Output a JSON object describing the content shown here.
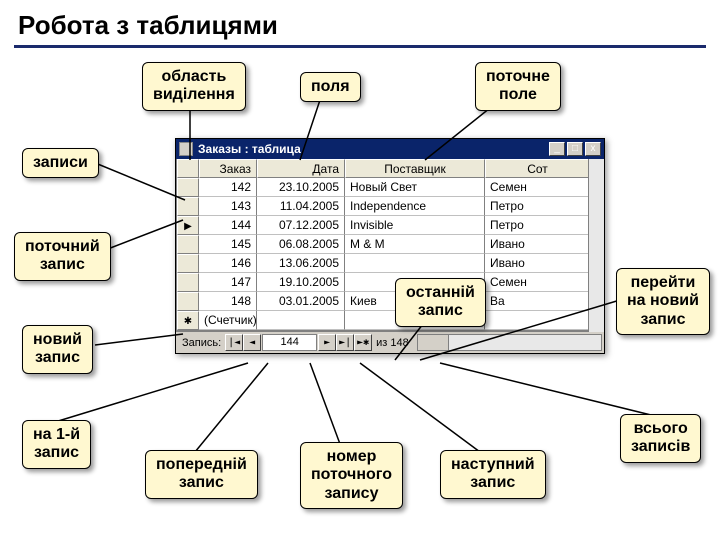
{
  "page": {
    "title": "Робота з таблицями"
  },
  "callouts": {
    "selection_area": "область\nвиділення",
    "fields": "поля",
    "current_field": "поточне\nполе",
    "records": "записи",
    "current_record": "поточний\nзапис",
    "new_record": "новий\nзапис",
    "last_record": "останній\nзапис",
    "goto_new": "перейти\nна новий\nзапис",
    "goto_first": "на 1-й\nзапис",
    "prev_record": "попередній\nзапис",
    "current_num": "номер\nпоточного\nзапису",
    "next_record": "наступний\nзапис",
    "total_records": "всього\nзаписів"
  },
  "window": {
    "title": "Заказы : таблица",
    "min": "_",
    "max": "□",
    "close": "x"
  },
  "grid": {
    "columns": [
      "Заказ",
      "Дата",
      "Поставщик",
      "Сот"
    ],
    "rows": [
      [
        "142",
        "23.10.2005",
        "Новый Свет",
        "Семен"
      ],
      [
        "143",
        "11.04.2005",
        "Independence",
        "Петро"
      ],
      [
        "144",
        "07.12.2005",
        "Invisible",
        "Петро"
      ],
      [
        "145",
        "06.08.2005",
        "M & M",
        "Ивано"
      ],
      [
        "146",
        "13.06.2005",
        "",
        "Ивано"
      ],
      [
        "147",
        "19.10.2005",
        "",
        "Семен"
      ],
      [
        "148",
        "03.01.2005",
        "Киев",
        "Ba"
      ]
    ],
    "row_markers": [
      "",
      "",
      "▶",
      "",
      "",
      "",
      "",
      "✱"
    ],
    "counter_row": "(Счетчик)"
  },
  "nav": {
    "label": "Запись:",
    "first": "|◄",
    "prev": "◄",
    "current": "144",
    "next": "►",
    "last": "►|",
    "new": "►✱",
    "total_label": "из 148"
  }
}
